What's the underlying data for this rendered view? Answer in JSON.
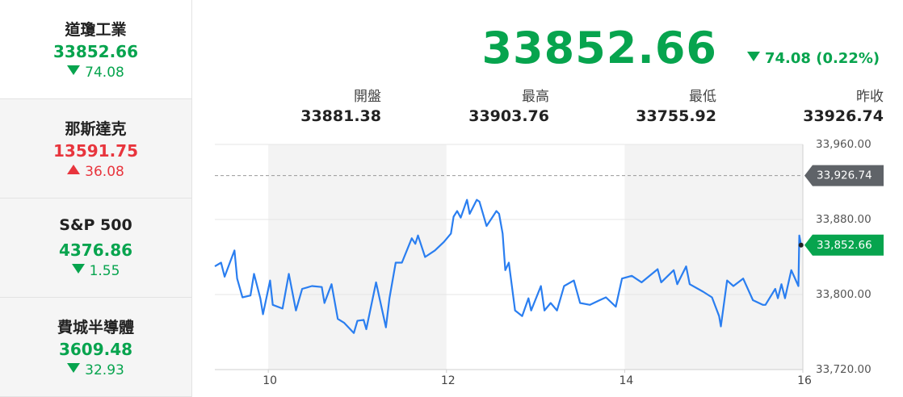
{
  "sidebar": [
    {
      "name": "道瓊工業",
      "value": "33852.66",
      "change": "74.08",
      "direction": "down"
    },
    {
      "name": "那斯達克",
      "value": "13591.75",
      "change": "36.08",
      "direction": "up"
    },
    {
      "name": "S&P 500",
      "value": "4376.86",
      "change": "1.55",
      "direction": "down"
    },
    {
      "name": "費城半導體",
      "value": "3609.48",
      "change": "32.93",
      "direction": "down"
    }
  ],
  "header": {
    "price": "33852.66",
    "change": "74.08",
    "change_pct": "(0.22%)",
    "direction": "down",
    "stats": [
      {
        "label": "開盤",
        "value": "33881.38"
      },
      {
        "label": "最高",
        "value": "33903.76"
      },
      {
        "label": "最低",
        "value": "33755.92"
      },
      {
        "label": "昨收",
        "value": "33926.74"
      }
    ]
  },
  "chart_data": {
    "type": "line",
    "x": [
      9.4,
      9.47,
      9.51,
      9.58,
      9.62,
      9.65,
      9.71,
      9.8,
      9.84,
      9.91,
      9.94,
      10.02,
      10.05,
      10.16,
      10.23,
      10.31,
      10.38,
      10.49,
      10.6,
      10.63,
      10.71,
      10.78,
      10.85,
      10.96,
      11.0,
      11.07,
      11.1,
      11.21,
      11.32,
      11.36,
      11.43,
      11.5,
      11.61,
      11.65,
      11.68,
      11.76,
      11.87,
      11.97,
      12.05,
      12.08,
      12.12,
      12.16,
      12.23,
      12.26,
      12.34,
      12.37,
      12.45,
      12.52,
      12.56,
      12.59,
      12.63,
      12.66,
      12.7,
      12.77,
      12.85,
      12.92,
      12.95,
      13.06,
      13.1,
      13.17,
      13.24,
      13.32,
      13.43,
      13.5,
      13.61,
      13.72,
      13.79,
      13.9,
      13.97,
      14.08,
      14.19,
      14.37,
      14.41,
      14.55,
      14.59,
      14.69,
      14.73,
      14.88,
      14.98,
      15.06,
      15.08,
      15.15,
      15.22,
      15.33,
      15.44,
      15.55,
      15.58,
      15.69,
      15.72,
      15.76,
      15.8,
      15.87,
      15.95,
      15.96,
      15.98
    ],
    "series": [
      {
        "color": "#2a7ef0",
        "values": [
          33830,
          33834,
          33819,
          33837,
          33847,
          33817,
          33797,
          33799,
          33822,
          33796,
          33779,
          33815,
          33789,
          33785,
          33822,
          33783,
          33806,
          33809,
          33808,
          33791,
          33811,
          33774,
          33770,
          33759,
          33772,
          33773,
          33763,
          33813,
          33765,
          33796,
          33834,
          33834,
          33860,
          33854,
          33863,
          33840,
          33847,
          33856,
          33865,
          33883,
          33889,
          33882,
          33901,
          33886,
          33901,
          33899,
          33873,
          33883,
          33889,
          33886,
          33865,
          33826,
          33834,
          33783,
          33777,
          33796,
          33783,
          33809,
          33783,
          33791,
          33783,
          33809,
          33815,
          33791,
          33789,
          33794,
          33797,
          33787,
          33817,
          33820,
          33813,
          33827,
          33813,
          33826,
          33811,
          33830,
          33811,
          33803,
          33797,
          33777,
          33766,
          33815,
          33809,
          33817,
          33794,
          33789,
          33789,
          33806,
          33796,
          33811,
          33796,
          33826,
          33809,
          33863,
          33852.66
        ]
      }
    ],
    "xlim": [
      9.4,
      16
    ],
    "xticks": [
      10,
      12,
      14,
      16
    ],
    "ylim": [
      33720,
      33960
    ],
    "yticks": [
      {
        "value": 33960,
        "label": "33,960.00"
      },
      {
        "value": 33880,
        "label": "33,880.00"
      },
      {
        "value": 33800,
        "label": "33,800.00"
      },
      {
        "value": 33720,
        "label": "33,720.00"
      }
    ],
    "grid": true,
    "reference_line": {
      "value": 33926.74,
      "label": "33,926.74",
      "color": "#5f6368"
    },
    "last_price_tag": {
      "value": 33852.66,
      "label": "33,852.66",
      "color": "#07a44e"
    }
  }
}
